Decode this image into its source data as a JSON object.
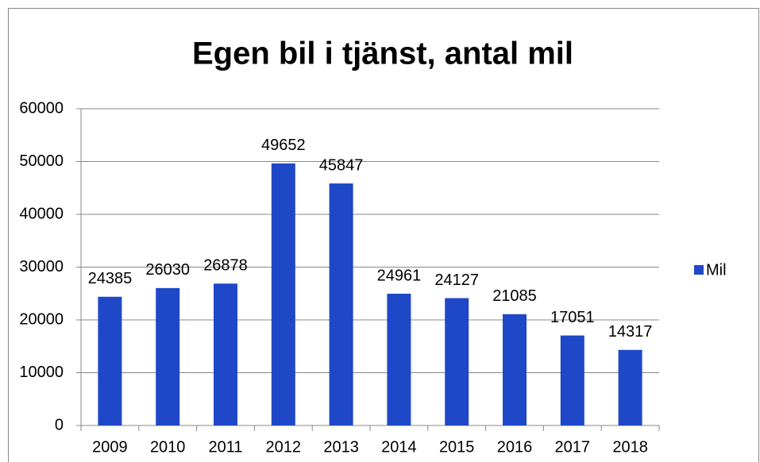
{
  "chart_data": {
    "type": "bar",
    "title": "Egen bil i tjänst, antal mil",
    "categories": [
      "2009",
      "2010",
      "2011",
      "2012",
      "2013",
      "2014",
      "2015",
      "2016",
      "2017",
      "2018"
    ],
    "series": [
      {
        "name": "Mil",
        "color": "#1f48c8",
        "values": [
          24385,
          26030,
          26878,
          49652,
          45847,
          24961,
          24127,
          21085,
          17051,
          14317
        ]
      }
    ],
    "ylim": [
      0,
      60000
    ],
    "yticks": [
      0,
      10000,
      20000,
      30000,
      40000,
      50000,
      60000
    ],
    "grid": true,
    "legend": "right"
  }
}
